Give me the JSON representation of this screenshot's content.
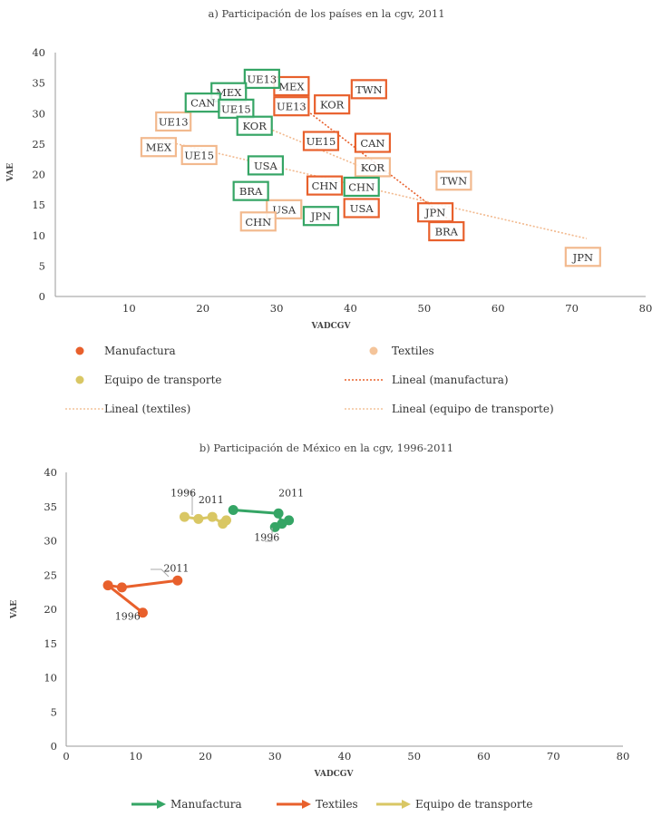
{
  "chart_data": [
    {
      "type": "scatter",
      "title": "a) Participación de los países en la cgv, 2011",
      "xlabel": "VADCGV",
      "ylabel": "VAE",
      "xlim": [
        0,
        80
      ],
      "ylim": [
        0,
        40
      ],
      "xticks": [
        "10",
        "20",
        "30",
        "40",
        "50",
        "60",
        "70",
        "80"
      ],
      "yticks": [
        "0",
        "5",
        "10",
        "15",
        "20",
        "25",
        "30",
        "35",
        "40"
      ],
      "series": [
        {
          "name": "Manufactura",
          "color": "#e8602c",
          "points": [
            {
              "label": "MEX",
              "x": 32,
              "y": 34.5
            },
            {
              "label": "TWN",
              "x": 42.5,
              "y": 34
            },
            {
              "label": "UE13",
              "x": 32,
              "y": 31.2
            },
            {
              "label": "KOR",
              "x": 37.5,
              "y": 31.5
            },
            {
              "label": "UE15",
              "x": 36,
              "y": 25.5
            },
            {
              "label": "CAN",
              "x": 43,
              "y": 25.2
            },
            {
              "label": "CHN",
              "x": 36.5,
              "y": 18.2
            },
            {
              "label": "USA",
              "x": 41.5,
              "y": 14.5
            },
            {
              "label": "JPN",
              "x": 51.5,
              "y": 13.8
            },
            {
              "label": "BRA",
              "x": 53,
              "y": 10.7
            }
          ]
        },
        {
          "name": "Textiles",
          "color": "#f2b98e",
          "points": [
            {
              "label": "UE13",
              "x": 16,
              "y": 28.7
            },
            {
              "label": "MEX",
              "x": 14,
              "y": 24.5
            },
            {
              "label": "UE15",
              "x": 19.5,
              "y": 23.2
            },
            {
              "label": "KOR",
              "x": 43,
              "y": 21.2
            },
            {
              "label": "TWN",
              "x": 54,
              "y": 19
            },
            {
              "label": "USA",
              "x": 31,
              "y": 14.3
            },
            {
              "label": "CHN",
              "x": 27.5,
              "y": 12.3
            },
            {
              "label": "JPN",
              "x": 71.5,
              "y": 6.5
            }
          ]
        },
        {
          "name": "Equipo de transporte",
          "color": "#35a565",
          "points": [
            {
              "label": "UE13",
              "x": 28,
              "y": 35.7
            },
            {
              "label": "MEX",
              "x": 23.5,
              "y": 33.5
            },
            {
              "label": "CAN",
              "x": 20,
              "y": 31.8
            },
            {
              "label": "UE15",
              "x": 24.5,
              "y": 30.8
            },
            {
              "label": "KOR",
              "x": 27,
              "y": 28
            },
            {
              "label": "USA",
              "x": 28.5,
              "y": 21.5
            },
            {
              "label": "BRA",
              "x": 26.5,
              "y": 17.3
            },
            {
              "label": "CHN",
              "x": 41.5,
              "y": 18
            },
            {
              "label": "JPN",
              "x": 36,
              "y": 13.2
            }
          ]
        }
      ],
      "trendlines": [
        {
          "name": "Lineal (manufactura)",
          "color": "#e8602c",
          "x": [
            33,
            54
          ],
          "y": [
            31.5,
            12
          ]
        },
        {
          "name": "Lineal (textiles)",
          "color": "#f2b98e",
          "x": [
            13,
            72
          ],
          "y": [
            26,
            9.5
          ]
        },
        {
          "name": "Lineal (equipo de transporte)",
          "color": "#f2b98e",
          "x": [
            24,
            44
          ],
          "y": [
            30,
            20
          ]
        }
      ],
      "legend": [
        {
          "label": "Manufactura",
          "kind": "dot",
          "color": "#e8602c"
        },
        {
          "label": "Textiles",
          "kind": "dot",
          "color": "#f4c49a"
        },
        {
          "label": "Equipo de transporte",
          "kind": "dot",
          "color": "#d9c764"
        },
        {
          "label": "Lineal (manufactura)",
          "kind": "dash",
          "color": "#e8602c"
        },
        {
          "label": "Lineal (textiles)",
          "kind": "dash",
          "color": "#f4c49a"
        },
        {
          "label": "Lineal (equipo de transporte)",
          "kind": "dash",
          "color": "#f4c49a"
        }
      ]
    },
    {
      "type": "line",
      "title": "b) Participación de México en la cgv, 1996-2011",
      "xlabel": "VADCGV",
      "ylabel": "VAE",
      "xlim": [
        0,
        80
      ],
      "ylim": [
        0,
        40
      ],
      "xticks": [
        "0",
        "10",
        "20",
        "30",
        "40",
        "50",
        "60",
        "70",
        "80"
      ],
      "yticks": [
        "0",
        "5",
        "10",
        "15",
        "20",
        "25",
        "30",
        "35",
        "40"
      ],
      "series": [
        {
          "name": "Manufactura",
          "color": "#35a565",
          "x": [
            30,
            32,
            31,
            30.5,
            24
          ],
          "y": [
            32,
            33,
            32.5,
            34,
            34.5
          ]
        },
        {
          "name": "Textiles",
          "color": "#e8602c",
          "x": [
            11,
            6,
            8,
            16
          ],
          "y": [
            19.5,
            23.5,
            23.2,
            24.2
          ]
        },
        {
          "name": "Equipo de transporte",
          "color": "#d9c764",
          "x": [
            17,
            19,
            21,
            22.5,
            23
          ],
          "y": [
            33.5,
            33.2,
            33.5,
            32.5,
            33
          ]
        }
      ],
      "annotations": [
        {
          "text": "1996",
          "x": 15,
          "y": 36.5
        },
        {
          "text": "2011",
          "x": 19,
          "y": 35.5
        },
        {
          "text": "2011",
          "x": 30.5,
          "y": 36.5
        },
        {
          "text": "1996",
          "x": 27,
          "y": 30
        },
        {
          "text": "2011",
          "x": 14,
          "y": 25.5
        },
        {
          "text": "1996",
          "x": 7,
          "y": 18.5
        }
      ],
      "legend": [
        {
          "label": "Manufactura",
          "color": "#35a565"
        },
        {
          "label": "Textiles",
          "color": "#e8602c"
        },
        {
          "label": "Equipo de transporte",
          "color": "#d9c764"
        }
      ]
    }
  ]
}
